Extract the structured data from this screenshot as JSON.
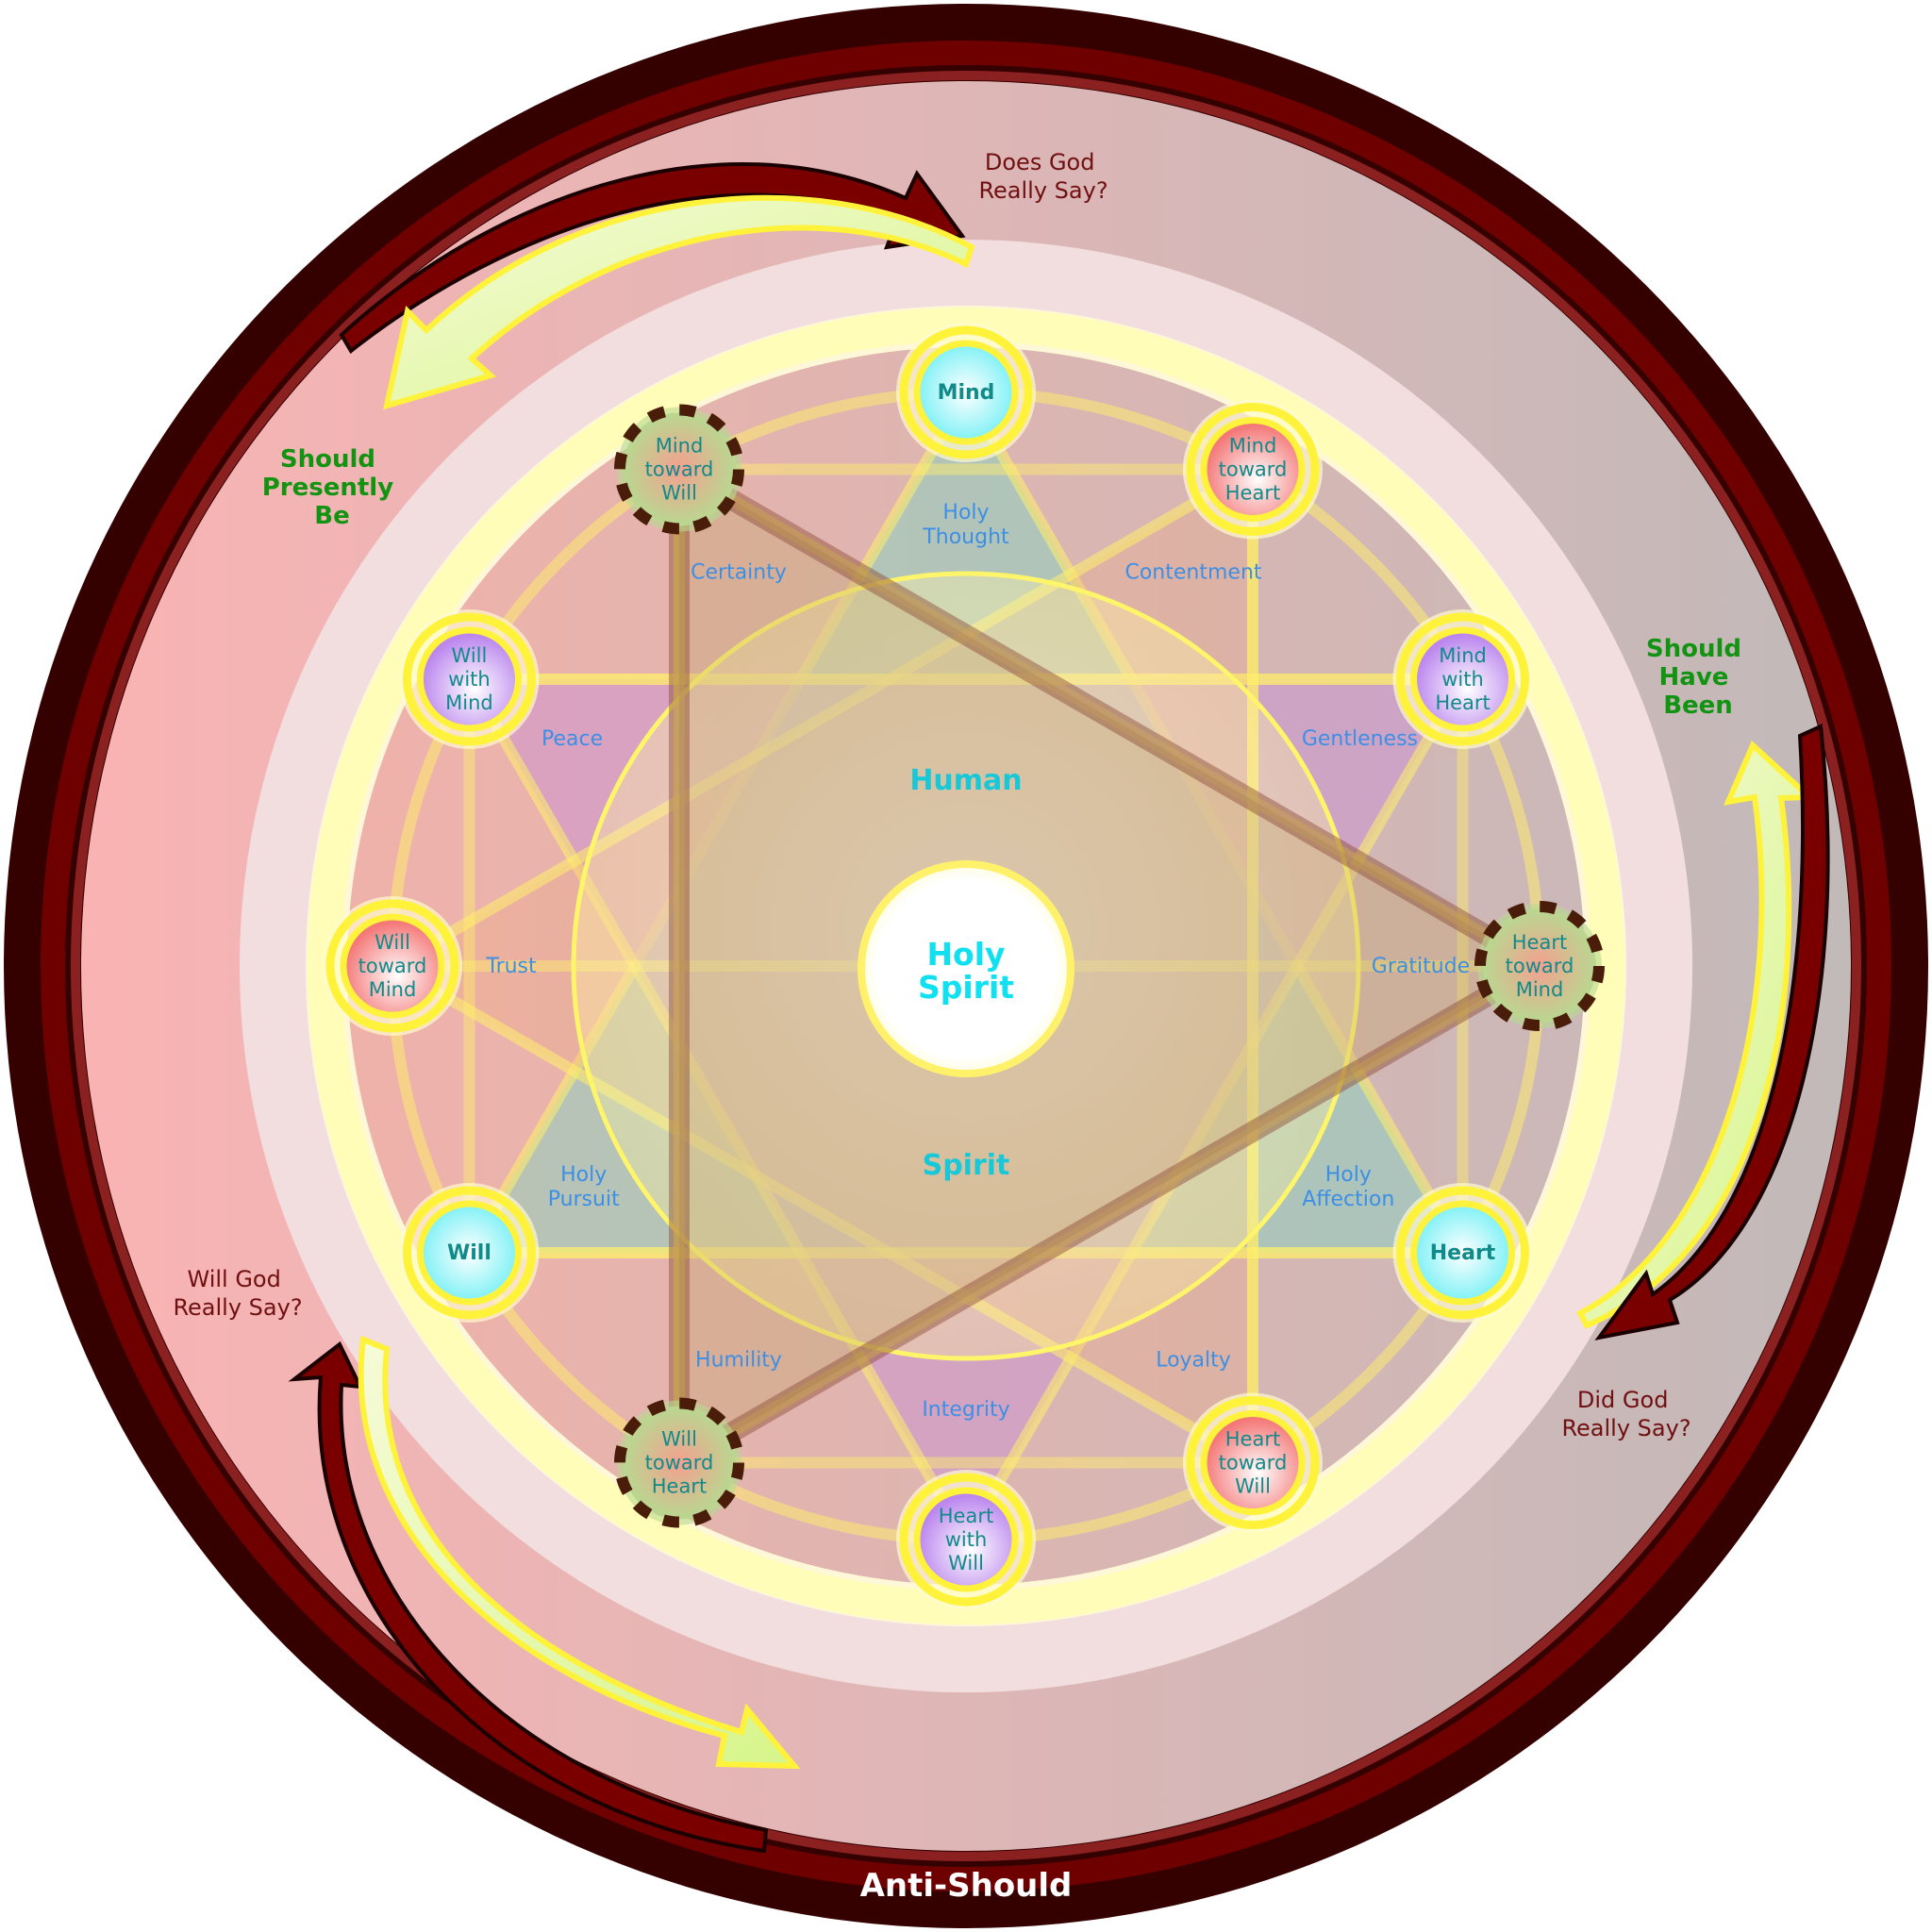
{
  "diagram": {
    "center": {
      "line1": "Holy",
      "line2": "Spirit"
    },
    "inner_top_word": "Human",
    "inner_bottom_word": "Spirit",
    "bottom_label": "Anti-Should",
    "should_labels": {
      "presently": [
        "Should",
        "Presently",
        "Be"
      ],
      "have_been": [
        "Should",
        "Have",
        "Been"
      ]
    },
    "questions": {
      "does": [
        "Does God",
        "Really Say?"
      ],
      "did": [
        "Did God",
        "Really Say?"
      ],
      "will": [
        "Will God",
        "Really Say?"
      ]
    },
    "nodes": [
      {
        "id": "mind",
        "lines": [
          "Mind"
        ],
        "bold": true,
        "style": "cyan"
      },
      {
        "id": "mind-toward-heart",
        "lines": [
          "Mind",
          "toward",
          "Heart"
        ],
        "bold": false,
        "style": "pink"
      },
      {
        "id": "mind-with-heart",
        "lines": [
          "Mind",
          "with",
          "Heart"
        ],
        "bold": false,
        "style": "purple"
      },
      {
        "id": "heart-toward-mind",
        "lines": [
          "Heart",
          "toward",
          "Mind"
        ],
        "bold": false,
        "style": "dashed"
      },
      {
        "id": "heart",
        "lines": [
          "Heart"
        ],
        "bold": true,
        "style": "cyan"
      },
      {
        "id": "heart-toward-will",
        "lines": [
          "Heart",
          "toward",
          "Will"
        ],
        "bold": false,
        "style": "pink"
      },
      {
        "id": "heart-with-will",
        "lines": [
          "Heart",
          "with",
          "Will"
        ],
        "bold": false,
        "style": "purple"
      },
      {
        "id": "will-toward-heart",
        "lines": [
          "Will",
          "toward",
          "Heart"
        ],
        "bold": false,
        "style": "dashed"
      },
      {
        "id": "will",
        "lines": [
          "Will"
        ],
        "bold": true,
        "style": "cyan"
      },
      {
        "id": "will-toward-mind",
        "lines": [
          "Will",
          "toward",
          "Mind"
        ],
        "bold": false,
        "style": "pink"
      },
      {
        "id": "will-with-mind",
        "lines": [
          "Will",
          "with",
          "Mind"
        ],
        "bold": false,
        "style": "purple"
      },
      {
        "id": "mind-toward-will",
        "lines": [
          "Mind",
          "toward",
          "Will"
        ],
        "bold": false,
        "style": "dashed"
      }
    ],
    "virtues": [
      {
        "id": "holy-thought",
        "lines": [
          "Holy",
          "Thought"
        ]
      },
      {
        "id": "contentment",
        "lines": [
          "Contentment"
        ]
      },
      {
        "id": "gentleness",
        "lines": [
          "Gentleness"
        ]
      },
      {
        "id": "gratitude",
        "lines": [
          "Gratitude"
        ]
      },
      {
        "id": "holy-affection",
        "lines": [
          "Holy",
          "Affection"
        ]
      },
      {
        "id": "loyalty",
        "lines": [
          "Loyalty"
        ]
      },
      {
        "id": "integrity",
        "lines": [
          "Integrity"
        ]
      },
      {
        "id": "humility",
        "lines": [
          "Humility"
        ]
      },
      {
        "id": "holy-pursuit",
        "lines": [
          "Holy",
          "Pursuit"
        ]
      },
      {
        "id": "trust",
        "lines": [
          "Trust"
        ]
      },
      {
        "id": "peace",
        "lines": [
          "Peace"
        ]
      },
      {
        "id": "certainty",
        "lines": [
          "Certainty"
        ]
      }
    ]
  },
  "colors": {
    "outer_ring": "#340000",
    "ring_red": "#6e0000",
    "arrow_red": "#7a0000",
    "yellow_glow": "#ffff40",
    "text_teal": "#118a8a",
    "virtue_blue": "#3d8fe6",
    "should_green": "#129412"
  }
}
